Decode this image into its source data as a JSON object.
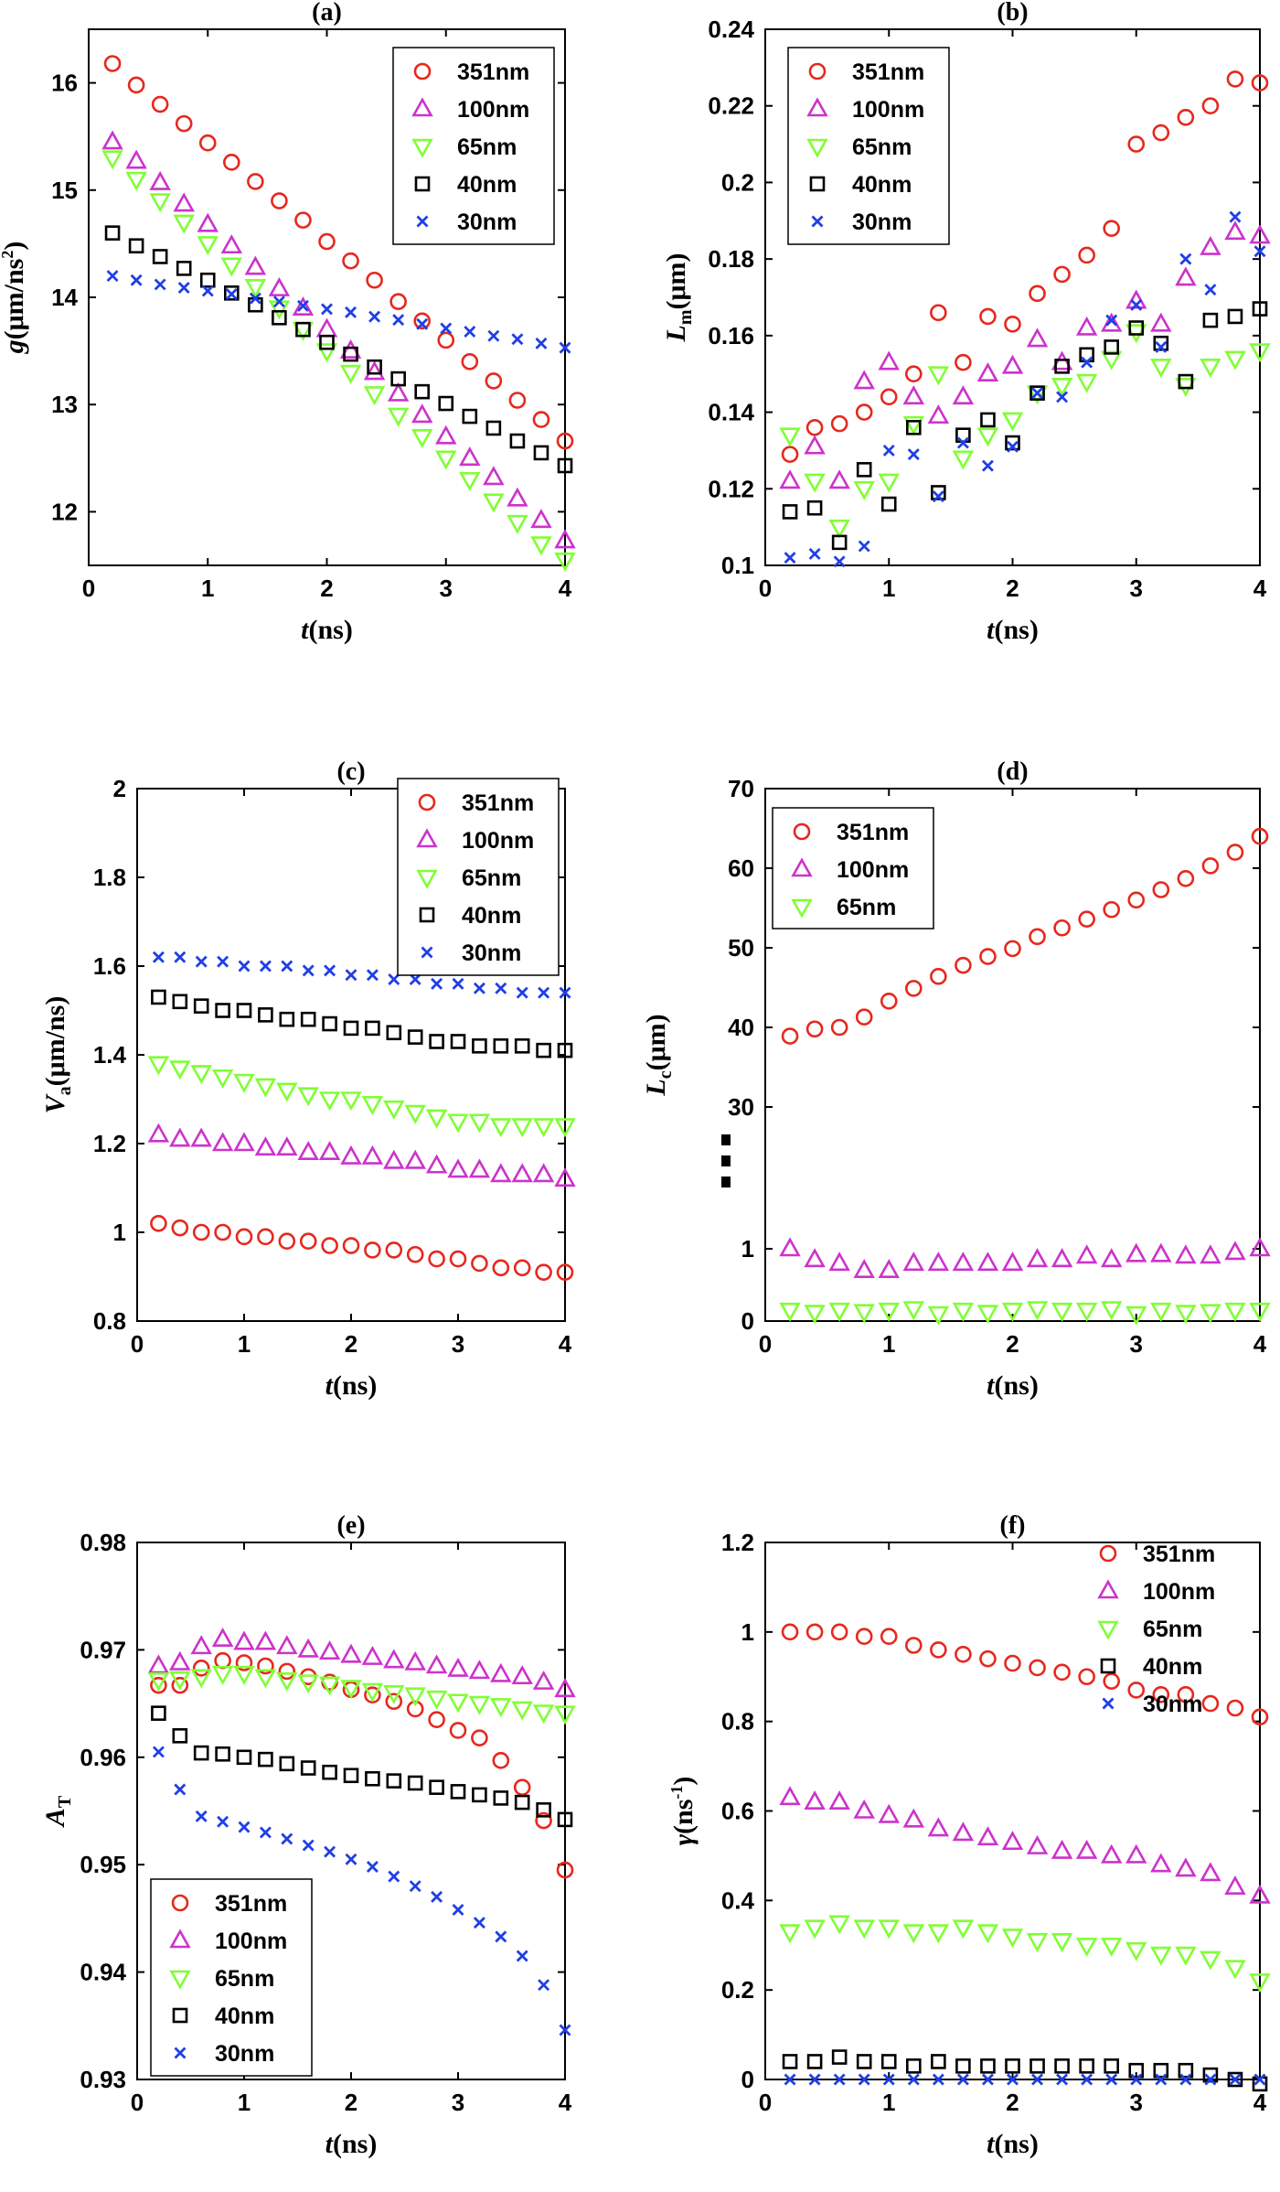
{
  "figure": {
    "colors": {
      "351nm": "#e6281e",
      "100nm": "#cc33cc",
      "65nm": "#80ff33",
      "40nm": "#000000",
      "30nm": "#1f3fe6"
    },
    "markers": {
      "351nm": "circle",
      "100nm": "triangle-up",
      "65nm": "triangle-down",
      "40nm": "square",
      "30nm": "x"
    }
  },
  "chart_data": [
    {
      "type": "scatter",
      "panel": "(a)",
      "title": "(a)",
      "xlabel_italic": "t",
      "xlabel_rest": "(ns)",
      "ylabel_italic": "g",
      "ylabel_rest": "(μm/ns",
      "ylabel_sup": "2",
      "ylabel_tail": ")",
      "xlim": [
        0,
        4
      ],
      "ylim": [
        11.5,
        16.5
      ],
      "xticks": [
        0,
        1,
        2,
        3,
        4
      ],
      "yticks": [
        12,
        13,
        14,
        15,
        16
      ],
      "ytick_labels": [
        "12",
        "13",
        "14",
        "15",
        "16"
      ],
      "grid": false,
      "legend_position": "top-right",
      "x": [
        0.2,
        0.4,
        0.6,
        0.8,
        1.0,
        1.2,
        1.4,
        1.6,
        1.8,
        2.0,
        2.2,
        2.4,
        2.6,
        2.8,
        3.0,
        3.2,
        3.4,
        3.6,
        3.8,
        4.0
      ],
      "series": [
        {
          "name": "351nm",
          "values": [
            16.18,
            15.98,
            15.8,
            15.62,
            15.44,
            15.26,
            15.08,
            14.9,
            14.72,
            14.52,
            14.34,
            14.16,
            13.96,
            13.78,
            13.6,
            13.4,
            13.22,
            13.04,
            12.86,
            12.66
          ]
        },
        {
          "name": "100nm",
          "values": [
            15.45,
            15.27,
            15.07,
            14.87,
            14.68,
            14.48,
            14.28,
            14.08,
            13.9,
            13.7,
            13.5,
            13.3,
            13.1,
            12.9,
            12.7,
            12.5,
            12.32,
            12.12,
            11.92,
            11.73
          ]
        },
        {
          "name": "65nm",
          "values": [
            15.3,
            15.1,
            14.9,
            14.7,
            14.5,
            14.3,
            14.1,
            13.9,
            13.7,
            13.5,
            13.3,
            13.1,
            12.9,
            12.7,
            12.5,
            12.3,
            12.1,
            11.9,
            11.7,
            11.55
          ]
        },
        {
          "name": "40nm",
          "values": [
            14.6,
            14.48,
            14.38,
            14.27,
            14.16,
            14.04,
            13.93,
            13.81,
            13.7,
            13.58,
            13.47,
            13.35,
            13.24,
            13.12,
            13.01,
            12.89,
            12.78,
            12.66,
            12.55,
            12.43
          ]
        },
        {
          "name": "30nm",
          "values": [
            14.2,
            14.16,
            14.12,
            14.09,
            14.06,
            14.03,
            13.99,
            13.96,
            13.92,
            13.89,
            13.86,
            13.82,
            13.79,
            13.75,
            13.71,
            13.68,
            13.64,
            13.61,
            13.57,
            13.53
          ]
        }
      ]
    },
    {
      "type": "scatter",
      "panel": "(b)",
      "title": "(b)",
      "xlabel_italic": "t",
      "xlabel_rest": "(ns)",
      "ylabel_italic": "L",
      "ylabel_sub": "m",
      "ylabel_rest": "(μm)",
      "xlim": [
        0,
        4
      ],
      "ylim": [
        0.1,
        0.24
      ],
      "xticks": [
        0,
        1,
        2,
        3,
        4
      ],
      "yticks": [
        0.1,
        0.12,
        0.14,
        0.16,
        0.18,
        0.2,
        0.22,
        0.24
      ],
      "ytick_labels": [
        "0.1",
        "0.12",
        "0.14",
        "0.16",
        "0.18",
        "0.2",
        "0.22",
        "0.24"
      ],
      "grid": false,
      "legend_position": "top-left",
      "x": [
        0.2,
        0.4,
        0.6,
        0.8,
        1.0,
        1.2,
        1.4,
        1.6,
        1.8,
        2.0,
        2.2,
        2.4,
        2.6,
        2.8,
        3.0,
        3.2,
        3.4,
        3.6,
        3.8,
        4.0
      ],
      "series": [
        {
          "name": "351nm",
          "values": [
            0.129,
            0.136,
            0.137,
            0.14,
            0.144,
            0.15,
            0.166,
            0.153,
            0.165,
            0.163,
            0.171,
            0.176,
            0.181,
            0.188,
            0.21,
            0.213,
            0.217,
            0.22,
            0.227,
            0.226
          ]
        },
        {
          "name": "100nm",
          "values": [
            0.122,
            0.131,
            0.122,
            0.148,
            0.153,
            0.144,
            0.139,
            0.144,
            0.15,
            0.152,
            0.159,
            0.153,
            0.162,
            0.163,
            0.169,
            0.163,
            0.175,
            0.183,
            0.187,
            0.186
          ]
        },
        {
          "name": "65nm",
          "values": [
            0.134,
            0.122,
            0.11,
            0.12,
            0.122,
            0.137,
            0.15,
            0.128,
            0.134,
            0.138,
            0.145,
            0.147,
            0.148,
            0.154,
            0.161,
            0.152,
            0.147,
            0.152,
            0.154,
            0.156
          ]
        },
        {
          "name": "40nm",
          "values": [
            0.114,
            0.115,
            0.106,
            0.125,
            0.116,
            0.136,
            0.119,
            0.134,
            0.138,
            0.132,
            0.145,
            0.152,
            0.155,
            0.157,
            0.162,
            0.158,
            0.148,
            0.164,
            0.165,
            0.167
          ]
        },
        {
          "name": "30nm",
          "values": [
            0.102,
            0.103,
            0.101,
            0.105,
            0.13,
            0.129,
            0.118,
            0.132,
            0.126,
            0.131,
            0.145,
            0.144,
            0.153,
            0.164,
            0.168,
            0.157,
            0.18,
            0.172,
            0.191,
            0.182
          ]
        }
      ]
    },
    {
      "type": "scatter",
      "panel": "(c)",
      "title": "(c)",
      "xlabel_italic": "t",
      "xlabel_rest": "(ns)",
      "ylabel_italic": "V",
      "ylabel_sub": "a",
      "ylabel_rest": "(μm/ns)",
      "xlim": [
        0,
        4
      ],
      "ylim": [
        0.8,
        2.0
      ],
      "xticks": [
        0,
        1,
        2,
        3,
        4
      ],
      "yticks": [
        0.8,
        1.0,
        1.2,
        1.4,
        1.6,
        1.8,
        2.0
      ],
      "ytick_labels": [
        "0.8",
        "1",
        "1.2",
        "1.4",
        "1.6",
        "1.8",
        "2"
      ],
      "grid": false,
      "legend_position": "top-right",
      "x": [
        0.2,
        0.4,
        0.6,
        0.8,
        1.0,
        1.2,
        1.4,
        1.6,
        1.8,
        2.0,
        2.2,
        2.4,
        2.6,
        2.8,
        3.0,
        3.2,
        3.4,
        3.6,
        3.8,
        4.0
      ],
      "series": [
        {
          "name": "351nm",
          "values": [
            1.02,
            1.01,
            1.0,
            1.0,
            0.99,
            0.99,
            0.98,
            0.98,
            0.97,
            0.97,
            0.96,
            0.96,
            0.95,
            0.94,
            0.94,
            0.93,
            0.92,
            0.92,
            0.91,
            0.91
          ]
        },
        {
          "name": "100nm",
          "values": [
            1.22,
            1.21,
            1.21,
            1.2,
            1.2,
            1.19,
            1.19,
            1.18,
            1.18,
            1.17,
            1.17,
            1.16,
            1.16,
            1.15,
            1.14,
            1.14,
            1.13,
            1.13,
            1.13,
            1.12
          ]
        },
        {
          "name": "65nm",
          "values": [
            1.38,
            1.37,
            1.36,
            1.35,
            1.34,
            1.33,
            1.32,
            1.31,
            1.3,
            1.3,
            1.29,
            1.28,
            1.27,
            1.26,
            1.25,
            1.25,
            1.24,
            1.24,
            1.24,
            1.24
          ]
        },
        {
          "name": "40nm",
          "values": [
            1.53,
            1.52,
            1.51,
            1.5,
            1.5,
            1.49,
            1.48,
            1.48,
            1.47,
            1.46,
            1.46,
            1.45,
            1.44,
            1.43,
            1.43,
            1.42,
            1.42,
            1.42,
            1.41,
            1.41
          ]
        },
        {
          "name": "30nm",
          "values": [
            1.62,
            1.62,
            1.61,
            1.61,
            1.6,
            1.6,
            1.6,
            1.59,
            1.59,
            1.58,
            1.58,
            1.57,
            1.57,
            1.56,
            1.56,
            1.55,
            1.55,
            1.54,
            1.54,
            1.54
          ]
        }
      ]
    },
    {
      "type": "scatter",
      "panel": "(d)",
      "title": "(d)",
      "xlabel_italic": "t",
      "xlabel_rest": "(ns)",
      "ylabel_italic": "L",
      "ylabel_sub": "c",
      "ylabel_rest": "(μm)",
      "xlim": [
        0,
        4
      ],
      "ylim": [
        0,
        70
      ],
      "axis_break": "broken y-axis: 0–1 at bottom, 30–70 at top",
      "xticks": [
        0,
        1,
        2,
        3,
        4
      ],
      "yticks": [
        0,
        1,
        30,
        40,
        50,
        60,
        70
      ],
      "ytick_labels": [
        "0",
        "1",
        "30",
        "40",
        "50",
        "60",
        "70"
      ],
      "grid": false,
      "legend_position": "top-left",
      "x": [
        0.2,
        0.4,
        0.6,
        0.8,
        1.0,
        1.2,
        1.4,
        1.6,
        1.8,
        2.0,
        2.2,
        2.4,
        2.6,
        2.8,
        3.0,
        3.2,
        3.4,
        3.6,
        3.8,
        4.0
      ],
      "series": [
        {
          "name": "351nm",
          "values": [
            38.9,
            39.8,
            40.0,
            41.3,
            43.3,
            44.9,
            46.4,
            47.8,
            48.9,
            49.9,
            51.4,
            52.5,
            53.6,
            54.8,
            56.0,
            57.3,
            58.7,
            60.3,
            62.0,
            64.0
          ]
        },
        {
          "name": "100nm",
          "values": [
            1.0,
            0.85,
            0.8,
            0.7,
            0.7,
            0.8,
            0.8,
            0.8,
            0.8,
            0.8,
            0.85,
            0.85,
            0.9,
            0.85,
            0.92,
            0.92,
            0.9,
            0.9,
            0.95,
            1.0
          ]
        },
        {
          "name": "65nm",
          "values": [
            0.15,
            0.12,
            0.15,
            0.13,
            0.15,
            0.17,
            0.1,
            0.15,
            0.12,
            0.15,
            0.17,
            0.15,
            0.15,
            0.17,
            0.1,
            0.15,
            0.12,
            0.13,
            0.15,
            0.15
          ]
        }
      ]
    },
    {
      "type": "scatter",
      "panel": "(e)",
      "title": "(e)",
      "xlabel_italic": "t",
      "xlabel_rest": "(ns)",
      "ylabel_italic": "A",
      "ylabel_sub": "T",
      "ylabel_rest": "",
      "xlim": [
        0,
        4
      ],
      "ylim": [
        0.93,
        0.98
      ],
      "xticks": [
        0,
        1,
        2,
        3,
        4
      ],
      "yticks": [
        0.93,
        0.94,
        0.95,
        0.96,
        0.97,
        0.98
      ],
      "ytick_labels": [
        "0.93",
        "0.94",
        "0.95",
        "0.96",
        "0.97",
        "0.98"
      ],
      "grid": false,
      "legend_position": "bottom-left",
      "x": [
        0.2,
        0.4,
        0.6,
        0.8,
        1.0,
        1.2,
        1.4,
        1.6,
        1.8,
        2.0,
        2.2,
        2.4,
        2.6,
        2.8,
        3.0,
        3.2,
        3.4,
        3.6,
        3.8,
        4.0
      ],
      "series": [
        {
          "name": "351nm",
          "values": [
            0.9667,
            0.9667,
            0.9683,
            0.969,
            0.9688,
            0.9685,
            0.968,
            0.9675,
            0.967,
            0.9663,
            0.9658,
            0.9652,
            0.9645,
            0.9635,
            0.9625,
            0.9618,
            0.9597,
            0.9572,
            0.9541,
            0.9495
          ]
        },
        {
          "name": "100nm",
          "values": [
            0.9685,
            0.9688,
            0.9703,
            0.971,
            0.9707,
            0.9707,
            0.9703,
            0.97,
            0.9698,
            0.9695,
            0.9693,
            0.969,
            0.9688,
            0.9685,
            0.9682,
            0.968,
            0.9677,
            0.9675,
            0.967,
            0.9663
          ]
        },
        {
          "name": "65nm",
          "values": [
            0.9672,
            0.9673,
            0.9675,
            0.9678,
            0.9678,
            0.9675,
            0.9672,
            0.967,
            0.9668,
            0.9665,
            0.9662,
            0.966,
            0.9658,
            0.9655,
            0.9652,
            0.965,
            0.9648,
            0.9645,
            0.9642,
            0.9641
          ]
        },
        {
          "name": "40nm",
          "values": [
            0.9641,
            0.962,
            0.9604,
            0.9603,
            0.96,
            0.9598,
            0.9594,
            0.959,
            0.9586,
            0.9583,
            0.958,
            0.9578,
            0.9576,
            0.9572,
            0.9568,
            0.9565,
            0.9562,
            0.9558,
            0.9551,
            0.9542
          ]
        },
        {
          "name": "30nm",
          "values": [
            0.9605,
            0.957,
            0.9545,
            0.954,
            0.9535,
            0.953,
            0.9524,
            0.9518,
            0.9512,
            0.9505,
            0.9498,
            0.9489,
            0.948,
            0.947,
            0.9458,
            0.9446,
            0.9433,
            0.9415,
            0.9388,
            0.9346
          ]
        }
      ]
    },
    {
      "type": "scatter",
      "panel": "(f)",
      "title": "(f)",
      "xlabel_italic": "t",
      "xlabel_rest": "(ns)",
      "ylabel_italic": "γ",
      "ylabel_rest": "(ns",
      "ylabel_sup": "-1",
      "ylabel_tail": ")",
      "xlim": [
        0,
        4
      ],
      "ylim": [
        0,
        1.2
      ],
      "xticks": [
        0,
        1,
        2,
        3,
        4
      ],
      "yticks": [
        0,
        0.2,
        0.4,
        0.6,
        0.8,
        1.0,
        1.2
      ],
      "ytick_labels": [
        "0",
        "0.2",
        "0.4",
        "0.6",
        "0.8",
        "1",
        "1.2"
      ],
      "grid": false,
      "legend_position": "top-right, above axes",
      "x": [
        0.2,
        0.4,
        0.6,
        0.8,
        1.0,
        1.2,
        1.4,
        1.6,
        1.8,
        2.0,
        2.2,
        2.4,
        2.6,
        2.8,
        3.0,
        3.2,
        3.4,
        3.6,
        3.8,
        4.0
      ],
      "series": [
        {
          "name": "351nm",
          "values": [
            1.0,
            1.0,
            1.0,
            0.99,
            0.99,
            0.97,
            0.96,
            0.95,
            0.94,
            0.93,
            0.92,
            0.91,
            0.9,
            0.89,
            0.87,
            0.86,
            0.86,
            0.84,
            0.83,
            0.81
          ]
        },
        {
          "name": "100nm",
          "values": [
            0.63,
            0.62,
            0.62,
            0.6,
            0.59,
            0.58,
            0.56,
            0.55,
            0.54,
            0.53,
            0.52,
            0.51,
            0.51,
            0.5,
            0.5,
            0.48,
            0.47,
            0.46,
            0.43,
            0.41
          ]
        },
        {
          "name": "65nm",
          "values": [
            0.33,
            0.34,
            0.35,
            0.34,
            0.34,
            0.33,
            0.33,
            0.34,
            0.33,
            0.32,
            0.31,
            0.31,
            0.3,
            0.3,
            0.29,
            0.28,
            0.28,
            0.27,
            0.25,
            0.22
          ]
        },
        {
          "name": "40nm",
          "values": [
            0.04,
            0.04,
            0.05,
            0.04,
            0.04,
            0.03,
            0.04,
            0.03,
            0.03,
            0.03,
            0.03,
            0.03,
            0.03,
            0.03,
            0.02,
            0.02,
            0.02,
            0.01,
            0.0,
            -0.01
          ]
        },
        {
          "name": "30nm",
          "values": [
            0.0,
            0.0,
            0.0,
            0.0,
            0.0,
            0.0,
            0.0,
            0.0,
            0.0,
            0.0,
            0.0,
            0.0,
            0.0,
            0.0,
            0.0,
            0.0,
            0.0,
            0.0,
            0.0,
            0.0
          ]
        }
      ]
    }
  ]
}
